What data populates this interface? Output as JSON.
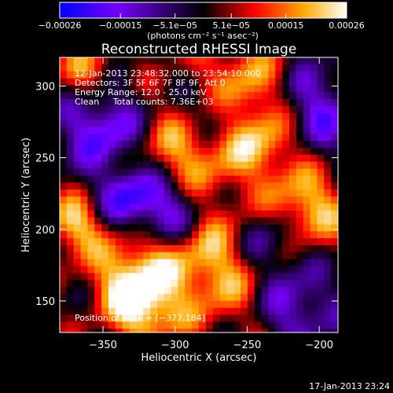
{
  "chart_data": {
    "type": "heatmap",
    "title": "Reconstructed RHESSI Image",
    "xlabel": "Heliocentric X (arcsec)",
    "ylabel": "Heliocentric Y (arcsec)",
    "xlim": [
      -380,
      -187
    ],
    "ylim": [
      128,
      320
    ],
    "x_ticks": [
      "−350",
      "−300",
      "−250",
      "−200"
    ],
    "x_tick_values": [
      -350,
      -300,
      -250,
      -200
    ],
    "y_ticks": [
      "150",
      "200",
      "250",
      "300"
    ],
    "y_tick_values": [
      150,
      200,
      250,
      300
    ],
    "colorbar": {
      "ticks": [
        "−0.00026",
        "−0.00015",
        "−5.1e−05",
        "5.1e−05",
        "0.00015",
        "0.00026"
      ],
      "tick_values": [
        -0.00026,
        -0.00015,
        -5.1e-05,
        5.1e-05,
        0.00015,
        0.00026
      ],
      "range": [
        -0.00026,
        0.00026
      ],
      "units_label": "(photons cm⁻² s⁻¹ asec⁻²)",
      "colors": [
        "#0000ff",
        "#7700ff",
        "#000000",
        "#ff0000",
        "#ffaa00",
        "#ffffff"
      ]
    },
    "annotations": [
      "12-Jan-2013 23:48:32.000 to 23:54:10.000",
      "Detectors: 3F 5F 6F 7F 8F 9F, Att 0",
      "Energy Range: 12.0 - 25.0 keV",
      "Clean     Total counts: 7.36E+03"
    ],
    "peak_label": "Position of Peak = [−377,184]",
    "peak": [
      -377,
      184
    ],
    "grid": false
  },
  "footer_date": "17-Jan-2013 23:24"
}
